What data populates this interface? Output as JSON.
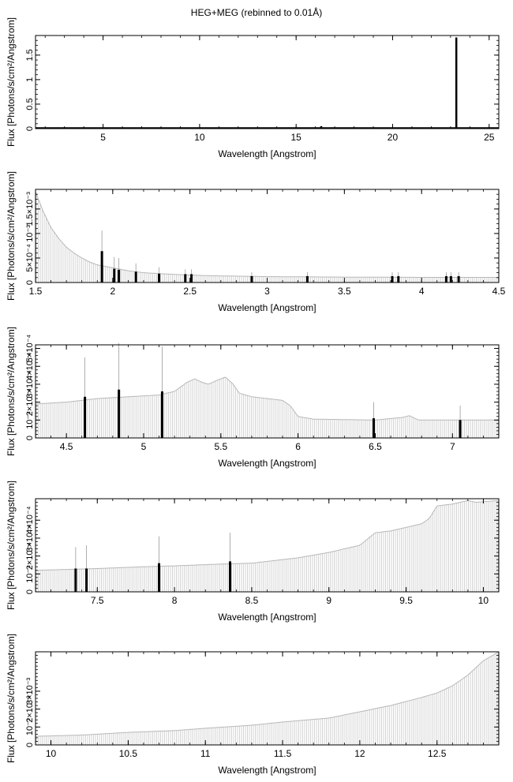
{
  "title": "HEG+MEG (rebinned to 0.01Å)",
  "chart_data": [
    {
      "type": "bar",
      "panel": 1,
      "xlabel": "Wavelength [Angstrom]",
      "ylabel": "Flux [Photons/s/cm²/Angstrom]",
      "xlim": [
        1.5,
        25.5
      ],
      "ylim": [
        0,
        1.9
      ],
      "xticks": [
        {
          "value": 5,
          "label": "5"
        },
        {
          "value": 10,
          "label": "10"
        },
        {
          "value": 15,
          "label": "15"
        },
        {
          "value": 20,
          "label": "20"
        },
        {
          "value": 25,
          "label": "25"
        }
      ],
      "yticks": [
        {
          "value": 0,
          "label": "0"
        },
        {
          "value": 0.5,
          "label": "0.5"
        },
        {
          "value": 1,
          "label": "1"
        },
        {
          "value": 1.5,
          "label": "1.5"
        }
      ],
      "baseline": [
        [
          1.5,
          0.01
        ],
        [
          25.5,
          0.01
        ]
      ],
      "spikes": [
        [
          23.3,
          1.86
        ],
        [
          16.3,
          0.05
        ]
      ],
      "error_bars": []
    },
    {
      "type": "bar",
      "panel": 2,
      "xlabel": "Wavelength [Angstrom]",
      "ylabel": "Flux [Photons/s/cm²/Angstrom]",
      "xlim": [
        1.5,
        4.5
      ],
      "ylim": [
        0,
        0.0019
      ],
      "xticks": [
        {
          "value": 1.5,
          "label": "1.5"
        },
        {
          "value": 2,
          "label": "2"
        },
        {
          "value": 2.5,
          "label": "2.5"
        },
        {
          "value": 3,
          "label": "3"
        },
        {
          "value": 3.5,
          "label": "3.5"
        },
        {
          "value": 4,
          "label": "4"
        },
        {
          "value": 4.5,
          "label": "4.5"
        }
      ],
      "yticks": [
        {
          "value": 0,
          "label": "0"
        },
        {
          "value": 0.0005,
          "label": "5×10⁻⁴"
        },
        {
          "value": 0.001,
          "label": "10⁻³"
        },
        {
          "value": 0.0015,
          "label": "1.5×10⁻³"
        }
      ],
      "baseline": [
        [
          1.5,
          0.00185
        ],
        [
          1.55,
          0.00145
        ],
        [
          1.6,
          0.00112
        ],
        [
          1.65,
          0.0009
        ],
        [
          1.7,
          0.00072
        ],
        [
          1.75,
          0.0006
        ],
        [
          1.8,
          0.0005
        ],
        [
          1.85,
          0.00042
        ],
        [
          1.9,
          0.00036
        ],
        [
          2.0,
          0.0003
        ],
        [
          2.1,
          0.00024
        ],
        [
          2.2,
          0.0002
        ],
        [
          2.4,
          0.000165
        ],
        [
          2.6,
          0.00014
        ],
        [
          3.0,
          0.00012
        ],
        [
          3.5,
          0.00011
        ],
        [
          4.0,
          0.000105
        ],
        [
          4.5,
          0.000105
        ]
      ],
      "spikes": [
        [
          1.93,
          0.00064
        ],
        [
          2.01,
          0.00028
        ],
        [
          2.04,
          0.00026
        ],
        [
          2.15,
          0.00022
        ],
        [
          2.3,
          0.00018
        ],
        [
          2.47,
          0.00017
        ],
        [
          2.51,
          0.00017
        ],
        [
          2.9,
          0.00013
        ],
        [
          3.26,
          0.00013
        ],
        [
          3.81,
          0.00013
        ],
        [
          3.85,
          0.00013
        ],
        [
          4.16,
          0.00013
        ],
        [
          4.19,
          0.00013
        ],
        [
          4.24,
          0.00013
        ]
      ],
      "error_bars": [
        [
          1.93,
          0.00106
        ],
        [
          2.01,
          0.00052
        ],
        [
          2.04,
          0.0005
        ],
        [
          2.15,
          0.00039
        ],
        [
          2.3,
          0.00031
        ],
        [
          2.47,
          0.00027
        ],
        [
          2.51,
          0.00027
        ],
        [
          2.9,
          0.00021
        ],
        [
          3.26,
          0.00021
        ],
        [
          3.81,
          0.00021
        ],
        [
          3.85,
          0.00021
        ],
        [
          4.16,
          0.00021
        ],
        [
          4.19,
          0.00021
        ],
        [
          4.24,
          0.00021
        ]
      ]
    },
    {
      "type": "bar",
      "panel": 3,
      "xlabel": "Wavelength [Angstrom]",
      "ylabel": "Flux [Photons/s/cm²/Angstrom]",
      "xlim": [
        4.3,
        7.3
      ],
      "ylim": [
        0,
        0.00052
      ],
      "xticks": [
        {
          "value": 4.5,
          "label": "4.5"
        },
        {
          "value": 5,
          "label": "5"
        },
        {
          "value": 5.5,
          "label": "5.5"
        },
        {
          "value": 6,
          "label": "6"
        },
        {
          "value": 6.5,
          "label": "6.5"
        },
        {
          "value": 7,
          "label": "7"
        }
      ],
      "yticks": [
        {
          "value": 0,
          "label": "0"
        },
        {
          "value": 0.0001,
          "label": "10⁻⁴"
        },
        {
          "value": 0.0002,
          "label": "2×10⁻⁴"
        },
        {
          "value": 0.0003,
          "label": "3×10⁻⁴"
        },
        {
          "value": 0.0004,
          "label": "4×10⁻⁴"
        },
        {
          "value": 0.0005,
          "label": "5×10⁻⁴"
        }
      ],
      "baseline": [
        [
          4.3,
          0.00019
        ],
        [
          4.5,
          0.0002
        ],
        [
          4.7,
          0.00022
        ],
        [
          4.9,
          0.00023
        ],
        [
          5.1,
          0.00024
        ],
        [
          5.2,
          0.00026
        ],
        [
          5.28,
          0.00031
        ],
        [
          5.33,
          0.00033
        ],
        [
          5.38,
          0.00031
        ],
        [
          5.42,
          0.0003
        ],
        [
          5.47,
          0.00032
        ],
        [
          5.53,
          0.00034
        ],
        [
          5.58,
          0.0003
        ],
        [
          5.62,
          0.00025
        ],
        [
          5.7,
          0.00023
        ],
        [
          5.8,
          0.00022
        ],
        [
          5.9,
          0.00021
        ],
        [
          5.95,
          0.00018
        ],
        [
          6.0,
          0.00012
        ],
        [
          6.1,
          0.000105
        ],
        [
          6.5,
          0.0001
        ],
        [
          6.68,
          0.000115
        ],
        [
          6.72,
          0.000125
        ],
        [
          6.78,
          0.0001
        ],
        [
          7.3,
          0.0001
        ]
      ],
      "spikes": [
        [
          4.62,
          0.00023
        ],
        [
          4.84,
          0.00027
        ],
        [
          5.12,
          0.00026
        ],
        [
          6.49,
          0.00011
        ],
        [
          7.05,
          0.0001
        ]
      ],
      "error_bars": [
        [
          4.62,
          0.00045
        ],
        [
          4.84,
          0.00053
        ],
        [
          5.12,
          0.00051
        ],
        [
          6.49,
          0.0002
        ],
        [
          7.05,
          0.00018
        ]
      ]
    },
    {
      "type": "bar",
      "panel": 4,
      "xlabel": "Wavelength [Angstrom]",
      "ylabel": "Flux [Photons/s/cm²/Angstrom]",
      "xlim": [
        7.1,
        10.1
      ],
      "ylim": [
        0,
        0.00052
      ],
      "xticks": [
        {
          "value": 7.5,
          "label": "7.5"
        },
        {
          "value": 8,
          "label": "8"
        },
        {
          "value": 8.5,
          "label": "8.5"
        },
        {
          "value": 9,
          "label": "9"
        },
        {
          "value": 9.5,
          "label": "9.5"
        },
        {
          "value": 10,
          "label": "10"
        }
      ],
      "yticks": [
        {
          "value": 0,
          "label": "0"
        },
        {
          "value": 0.0001,
          "label": "10⁻⁴"
        },
        {
          "value": 0.0002,
          "label": "2×10⁻⁴"
        },
        {
          "value": 0.0003,
          "label": "3×10⁻⁴"
        },
        {
          "value": 0.0004,
          "label": "4×10⁻⁴"
        }
      ],
      "baseline": [
        [
          7.1,
          0.00012
        ],
        [
          7.5,
          0.00013
        ],
        [
          7.8,
          0.00014
        ],
        [
          8.0,
          0.000145
        ],
        [
          8.3,
          0.000155
        ],
        [
          8.5,
          0.00016
        ],
        [
          8.8,
          0.00019
        ],
        [
          9.0,
          0.00022
        ],
        [
          9.2,
          0.00026
        ],
        [
          9.3,
          0.00033
        ],
        [
          9.4,
          0.00034
        ],
        [
          9.6,
          0.00038
        ],
        [
          9.65,
          0.00041
        ],
        [
          9.7,
          0.00048
        ],
        [
          9.8,
          0.00049
        ],
        [
          9.9,
          0.00051
        ],
        [
          9.95,
          0.0005
        ],
        [
          10.1,
          0.00051
        ]
      ],
      "spikes": [
        [
          7.36,
          0.00013
        ],
        [
          7.43,
          0.00013
        ],
        [
          7.9,
          0.00016
        ],
        [
          8.36,
          0.00017
        ]
      ],
      "error_bars": [
        [
          7.36,
          0.00025
        ],
        [
          7.43,
          0.00026
        ],
        [
          7.9,
          0.00031
        ],
        [
          8.36,
          0.00033
        ]
      ]
    },
    {
      "type": "bar",
      "panel": 5,
      "xlabel": "Wavelength [Angstrom]",
      "ylabel": "Flux [Photons/s/cm²/Angstrom]",
      "xlim": [
        9.9,
        12.9
      ],
      "ylim": [
        0,
        0.0052
      ],
      "xticks": [
        {
          "value": 10,
          "label": "10"
        },
        {
          "value": 10.5,
          "label": "10.5"
        },
        {
          "value": 11,
          "label": "11"
        },
        {
          "value": 11.5,
          "label": "11.5"
        },
        {
          "value": 12,
          "label": "12"
        },
        {
          "value": 12.5,
          "label": "12.5"
        }
      ],
      "yticks": [
        {
          "value": 0,
          "label": "0"
        },
        {
          "value": 0.001,
          "label": "10⁻³"
        },
        {
          "value": 0.002,
          "label": "2×10⁻³"
        },
        {
          "value": 0.003,
          "label": "3×10⁻³"
        }
      ],
      "baseline": [
        [
          9.9,
          0.00048
        ],
        [
          10.2,
          0.00055
        ],
        [
          10.5,
          0.0007
        ],
        [
          10.8,
          0.0008
        ],
        [
          11.0,
          0.00093
        ],
        [
          11.3,
          0.0011
        ],
        [
          11.5,
          0.00128
        ],
        [
          11.8,
          0.0015
        ],
        [
          12.0,
          0.00185
        ],
        [
          12.2,
          0.0022
        ],
        [
          12.4,
          0.00265
        ],
        [
          12.5,
          0.0029
        ],
        [
          12.6,
          0.0033
        ],
        [
          12.7,
          0.0039
        ],
        [
          12.8,
          0.0047
        ],
        [
          12.9,
          0.0052
        ]
      ],
      "spikes": [],
      "error_bars": []
    }
  ]
}
